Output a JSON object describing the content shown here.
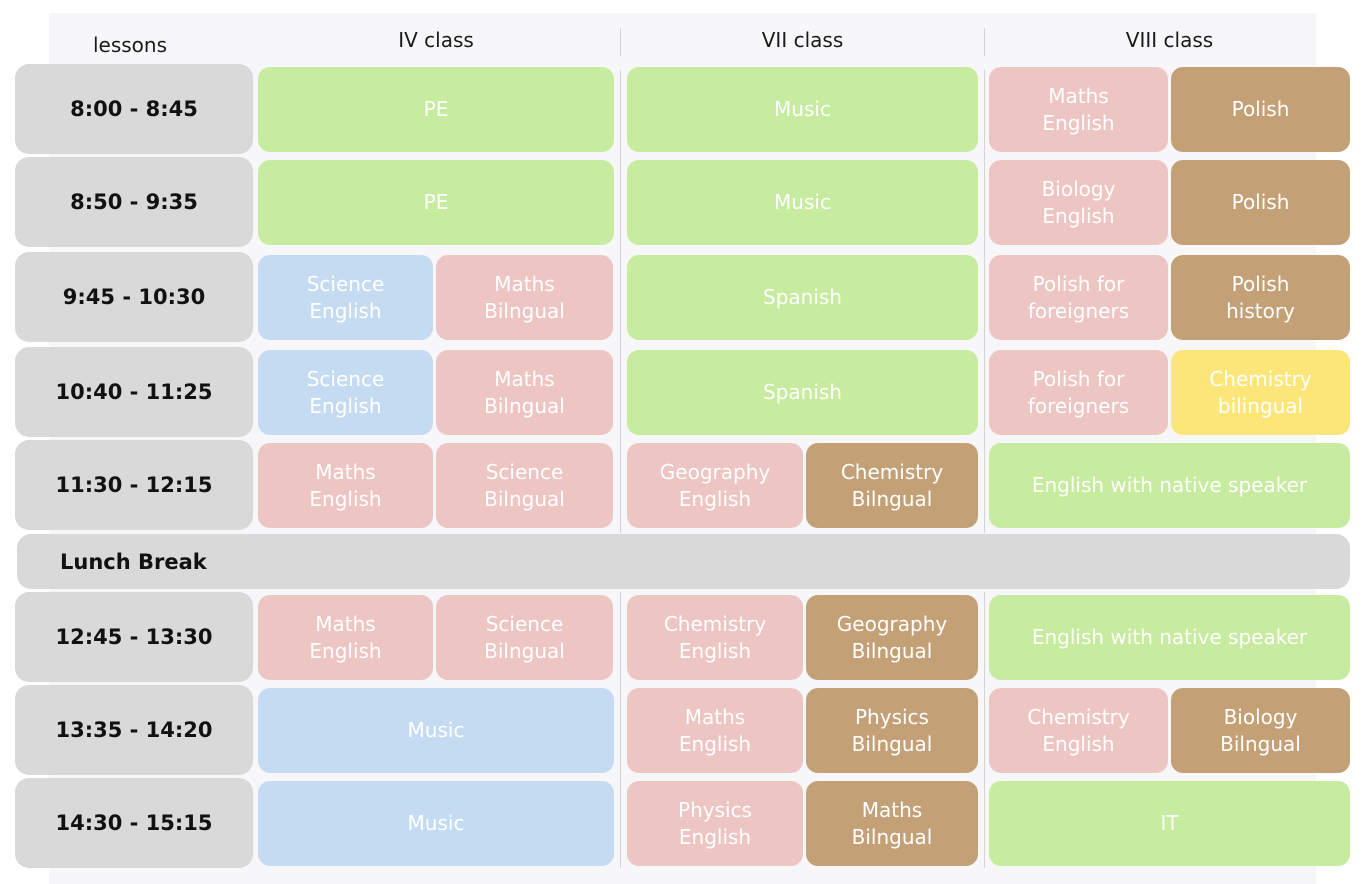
{
  "header": {
    "lessons_label": "lessons",
    "classes": [
      "IV class",
      "VII class",
      "VIII class"
    ]
  },
  "times": [
    "8:00 - 8:45",
    "8:50 - 9:35",
    "9:45 - 10:30",
    "10:40 - 11:25",
    "11:30 - 12:15",
    "12:45 - 13:30",
    "13:35 - 14:20",
    "14:30 - 15:15"
  ],
  "lunch_label": "Lunch Break",
  "colors": {
    "green": "#c7eb9f",
    "pink": "#edc5c2",
    "blue": "#c5dbf2",
    "brown": "#c3a076",
    "yellow": "#fce67a",
    "time_bg": "#d9d9d9"
  },
  "schedule": [
    {
      "iv": [
        {
          "text": "PE",
          "color": "green"
        }
      ],
      "vii": [
        {
          "text": "Music",
          "color": "green"
        }
      ],
      "viii": [
        {
          "text": "Maths\nEnglish",
          "color": "pink"
        },
        {
          "text": "Polish",
          "color": "brown"
        }
      ]
    },
    {
      "iv": [
        {
          "text": "PE",
          "color": "green"
        }
      ],
      "vii": [
        {
          "text": "Music",
          "color": "green"
        }
      ],
      "viii": [
        {
          "text": "Biology\nEnglish",
          "color": "pink"
        },
        {
          "text": "Polish",
          "color": "brown"
        }
      ]
    },
    {
      "iv": [
        {
          "text": "Science\nEnglish",
          "color": "blue"
        },
        {
          "text": "Maths\nBilngual",
          "color": "pink"
        }
      ],
      "vii": [
        {
          "text": "Spanish",
          "color": "green"
        }
      ],
      "viii": [
        {
          "text": "Polish for\nforeigners",
          "color": "pink"
        },
        {
          "text": "Polish\nhistory",
          "color": "brown"
        }
      ]
    },
    {
      "iv": [
        {
          "text": "Science\nEnglish",
          "color": "blue"
        },
        {
          "text": "Maths\nBilngual",
          "color": "pink"
        }
      ],
      "vii": [
        {
          "text": "Spanish",
          "color": "green"
        }
      ],
      "viii": [
        {
          "text": "Polish for\nforeigners",
          "color": "pink"
        },
        {
          "text": "Chemistry\nbilingual",
          "color": "yellow"
        }
      ]
    },
    {
      "iv": [
        {
          "text": "Maths\nEnglish",
          "color": "pink"
        },
        {
          "text": "Science\nBilngual",
          "color": "pink"
        }
      ],
      "vii": [
        {
          "text": "Geography\nEnglish",
          "color": "pink"
        },
        {
          "text": "Chemistry\nBilngual",
          "color": "brown"
        }
      ],
      "viii": [
        {
          "text": "English with native speaker",
          "color": "green"
        }
      ]
    },
    {
      "iv": [
        {
          "text": "Maths\nEnglish",
          "color": "pink"
        },
        {
          "text": "Science\nBilngual",
          "color": "pink"
        }
      ],
      "vii": [
        {
          "text": "Chemistry\nEnglish",
          "color": "pink"
        },
        {
          "text": "Geography\nBilngual",
          "color": "brown"
        }
      ],
      "viii": [
        {
          "text": "English with native speaker",
          "color": "green"
        }
      ]
    },
    {
      "iv": [
        {
          "text": "Music",
          "color": "blue"
        }
      ],
      "vii": [
        {
          "text": "Maths\nEnglish",
          "color": "pink"
        },
        {
          "text": "Physics\nBilngual",
          "color": "brown"
        }
      ],
      "viii": [
        {
          "text": "Chemistry\nEnglish",
          "color": "pink"
        },
        {
          "text": "Biology\nBilngual",
          "color": "brown"
        }
      ]
    },
    {
      "iv": [
        {
          "text": "Music",
          "color": "blue"
        }
      ],
      "vii": [
        {
          "text": "Physics\nEnglish",
          "color": "pink"
        },
        {
          "text": "Maths\nBilngual",
          "color": "brown"
        }
      ],
      "viii": [
        {
          "text": "IT",
          "color": "green"
        }
      ]
    }
  ]
}
